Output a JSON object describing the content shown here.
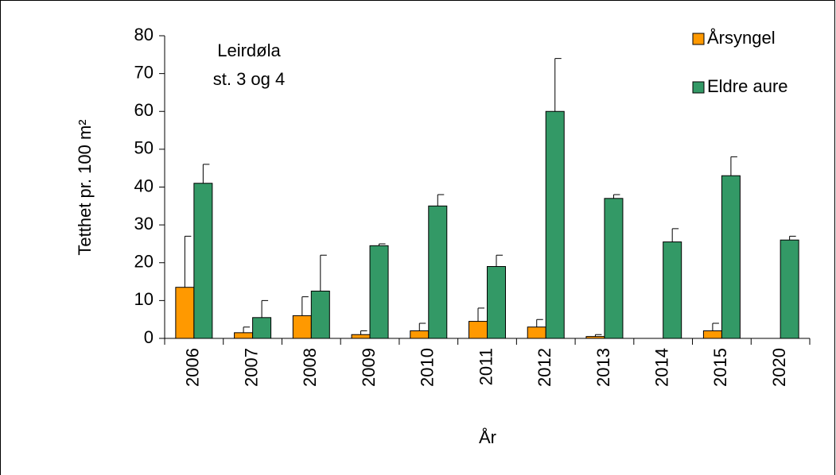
{
  "chart_data": {
    "type": "bar",
    "annotations": [
      "Leirdøla",
      "st. 3 og 4"
    ],
    "xlabel": "År",
    "ylabel": "Tetthet pr. 100 m²",
    "categories": [
      "2006",
      "2007",
      "2008",
      "2009",
      "2010",
      "2011",
      "2012",
      "2013",
      "2014",
      "2015",
      "2020"
    ],
    "series": [
      {
        "name": "Årsyngel",
        "color": "#ff9900",
        "values": [
          13.5,
          1.5,
          6,
          1,
          2,
          4.5,
          3,
          0.5,
          0,
          2,
          0
        ],
        "errors": [
          13.5,
          1.5,
          5,
          1,
          2,
          3.5,
          2,
          0.5,
          null,
          2,
          null
        ]
      },
      {
        "name": "Eldre aure",
        "color": "#339966",
        "values": [
          41,
          5.5,
          12.5,
          24.5,
          35,
          19,
          60,
          37,
          25.5,
          43,
          26
        ],
        "errors": [
          5,
          4.5,
          9.5,
          0.5,
          3,
          3,
          14,
          1,
          3.5,
          5,
          1
        ]
      }
    ],
    "ylim": [
      0,
      80
    ],
    "yticks": [
      0,
      10,
      20,
      30,
      40,
      50,
      60,
      70,
      80
    ],
    "legend": "upper right"
  }
}
